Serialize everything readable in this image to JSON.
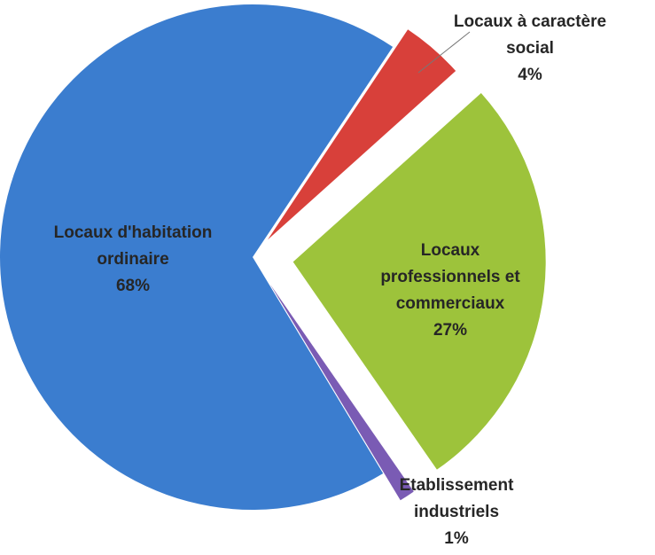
{
  "chart_data": {
    "type": "pie",
    "categories": [
      "Locaux à caractère social",
      "Locaux professionnels et commerciaux",
      "Etablissement industriels",
      "Locaux d'habitation ordinaire"
    ],
    "values": [
      4,
      27,
      1,
      68
    ],
    "value_labels": [
      "4%",
      "27%",
      "1%",
      "68%"
    ],
    "colors": [
      "#d8403a",
      "#9dc33b",
      "#7a5bb4",
      "#3b7dcf"
    ]
  }
}
